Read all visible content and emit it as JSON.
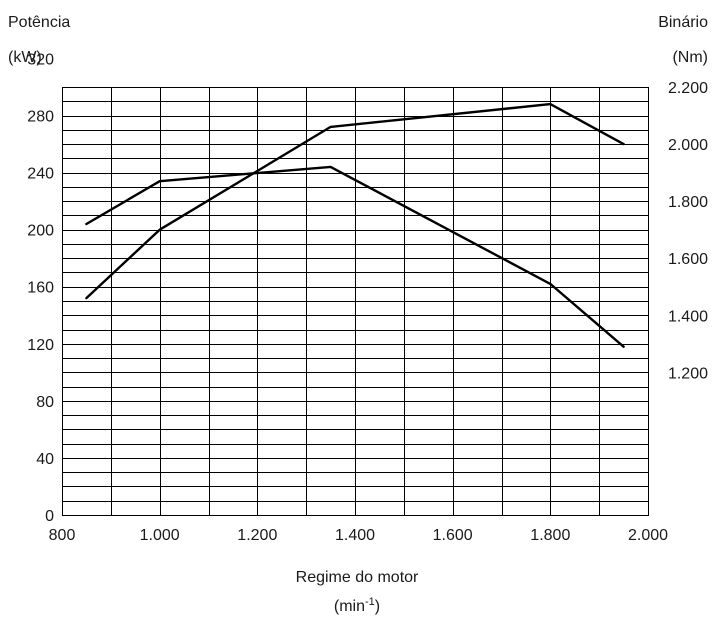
{
  "chart_data": {
    "type": "line",
    "left_axis": {
      "title": "Potência",
      "unit": "(kW)",
      "ticks": [
        "0",
        "40",
        "80",
        "120",
        "160",
        "200",
        "240",
        "280",
        "320"
      ]
    },
    "right_axis": {
      "title": "Binário",
      "unit": "(Nm)",
      "ticks": [
        "1.200",
        "1.400",
        "1.600",
        "1.800",
        "2.000",
        "2.200"
      ]
    },
    "x_axis": {
      "title": "Regime do motor",
      "unit_base": "(min",
      "unit_exp": "-1",
      "unit_end": ")",
      "ticks": [
        "800",
        "1.000",
        "1.200",
        "1.400",
        "1.600",
        "1.800",
        "2.000"
      ],
      "range": [
        800,
        2000
      ]
    },
    "left_range": [
      0,
      320
    ],
    "right_range": [
      1200,
      2200
    ],
    "grid": true,
    "series": [
      {
        "axis": "right",
        "color": "#000000",
        "x": [
          850,
          1000,
          1350,
          1800,
          1950
        ],
        "y": [
          1720,
          1870,
          1920,
          1510,
          1290
        ]
      },
      {
        "axis": "left",
        "color": "#000000",
        "x": [
          850,
          1000,
          1350,
          1800,
          1950
        ],
        "y": [
          152,
          200,
          272,
          288,
          260
        ]
      }
    ]
  }
}
